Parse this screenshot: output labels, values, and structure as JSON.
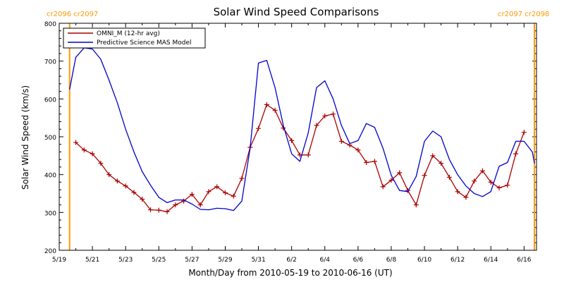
{
  "chart_data": {
    "type": "line",
    "title": "Solar Wind Speed Comparisons",
    "xlabel": "Month/Day from 2010-05-19 to 2010-06-16 (UT)",
    "ylabel": "Solar Wind Speed (km/s)",
    "xlim": [
      "2010-05-19",
      "2010-06-16T18:00"
    ],
    "ylim": [
      200,
      800
    ],
    "x_tick_labels": [
      "5/19",
      "5/21",
      "5/23",
      "5/25",
      "5/27",
      "5/29",
      "5/31",
      "6/2",
      "6/4",
      "6/6",
      "6/8",
      "6/10",
      "6/12",
      "6/14",
      "6/16"
    ],
    "y_tick_labels": [
      "200",
      "300",
      "400",
      "500",
      "600",
      "700",
      "800"
    ],
    "legend_placement": "top-left",
    "carrington_markers": [
      {
        "label": "cr2096 cr2097",
        "x": "2010-05-19T15:00",
        "color": "#ff9900"
      },
      {
        "label": "cr2097 cr2098",
        "x": "2010-06-16T15:00",
        "color": "#ff9900"
      }
    ],
    "series": [
      {
        "name": "OMNI_M (12-hr avg)",
        "color": "#aa0000",
        "marker": "plus",
        "points": [
          [
            "2010-05-20T00:00",
            485
          ],
          [
            "2010-05-20T12:00",
            465
          ],
          [
            "2010-05-21T00:00",
            455
          ],
          [
            "2010-05-21T12:00",
            430
          ],
          [
            "2010-05-22T00:00",
            400
          ],
          [
            "2010-05-22T12:00",
            383
          ],
          [
            "2010-05-23T00:00",
            370
          ],
          [
            "2010-05-23T12:00",
            353
          ],
          [
            "2010-05-24T00:00",
            335
          ],
          [
            "2010-05-24T12:00",
            307
          ],
          [
            "2010-05-25T00:00",
            306
          ],
          [
            "2010-05-25T12:00",
            302
          ],
          [
            "2010-05-26T00:00",
            320
          ],
          [
            "2010-05-26T12:00",
            330
          ],
          [
            "2010-05-27T00:00",
            348
          ],
          [
            "2010-05-27T12:00",
            320
          ],
          [
            "2010-05-28T00:00",
            355
          ],
          [
            "2010-05-28T12:00",
            368
          ],
          [
            "2010-05-29T00:00",
            352
          ],
          [
            "2010-05-29T12:00",
            343
          ],
          [
            "2010-05-30T00:00",
            390
          ],
          [
            "2010-05-30T12:00",
            472
          ],
          [
            "2010-05-31T00:00",
            522
          ],
          [
            "2010-05-31T12:00",
            585
          ],
          [
            "2010-06-01T00:00",
            570
          ],
          [
            "2010-06-01T12:00",
            523
          ],
          [
            "2010-06-02T00:00",
            490
          ],
          [
            "2010-06-02T12:00",
            452
          ],
          [
            "2010-06-03T00:00",
            452
          ],
          [
            "2010-06-03T12:00",
            530
          ],
          [
            "2010-06-04T00:00",
            555
          ],
          [
            "2010-06-04T12:00",
            560
          ],
          [
            "2010-06-05T00:00",
            488
          ],
          [
            "2010-06-05T12:00",
            478
          ],
          [
            "2010-06-06T00:00",
            465
          ],
          [
            "2010-06-06T12:00",
            432
          ],
          [
            "2010-06-07T00:00",
            435
          ],
          [
            "2010-06-07T12:00",
            368
          ],
          [
            "2010-06-08T00:00",
            385
          ],
          [
            "2010-06-08T12:00",
            405
          ],
          [
            "2010-06-09T00:00",
            358
          ],
          [
            "2010-06-09T12:00",
            320
          ],
          [
            "2010-06-10T00:00",
            398
          ],
          [
            "2010-06-10T12:00",
            450
          ],
          [
            "2010-06-11T00:00",
            430
          ],
          [
            "2010-06-11T12:00",
            393
          ],
          [
            "2010-06-12T00:00",
            355
          ],
          [
            "2010-06-12T12:00",
            340
          ],
          [
            "2010-06-13T00:00",
            383
          ],
          [
            "2010-06-13T12:00",
            410
          ],
          [
            "2010-06-14T00:00",
            380
          ],
          [
            "2010-06-14T12:00",
            365
          ],
          [
            "2010-06-15T00:00",
            372
          ],
          [
            "2010-06-15T12:00",
            455
          ],
          [
            "2010-06-16T00:00",
            512
          ]
        ]
      },
      {
        "name": "Predictive Science MAS Model",
        "color": "#0000cc",
        "points": [
          [
            "2010-05-19T15:00",
            625
          ],
          [
            "2010-05-20T00:00",
            710
          ],
          [
            "2010-05-20T12:00",
            735
          ],
          [
            "2010-05-21T00:00",
            732
          ],
          [
            "2010-05-21T12:00",
            705
          ],
          [
            "2010-05-22T00:00",
            650
          ],
          [
            "2010-05-22T12:00",
            590
          ],
          [
            "2010-05-23T00:00",
            520
          ],
          [
            "2010-05-23T12:00",
            460
          ],
          [
            "2010-05-24T00:00",
            408
          ],
          [
            "2010-05-24T12:00",
            372
          ],
          [
            "2010-05-25T00:00",
            340
          ],
          [
            "2010-05-25T12:00",
            326
          ],
          [
            "2010-05-26T00:00",
            333
          ],
          [
            "2010-05-26T12:00",
            333
          ],
          [
            "2010-05-27T00:00",
            322
          ],
          [
            "2010-05-27T12:00",
            308
          ],
          [
            "2010-05-28T00:00",
            307
          ],
          [
            "2010-05-28T12:00",
            311
          ],
          [
            "2010-05-29T00:00",
            310
          ],
          [
            "2010-05-29T12:00",
            305
          ],
          [
            "2010-05-30T00:00",
            330
          ],
          [
            "2010-05-30T12:00",
            470
          ],
          [
            "2010-05-31T00:00",
            695
          ],
          [
            "2010-05-31T12:00",
            702
          ],
          [
            "2010-06-01T00:00",
            630
          ],
          [
            "2010-06-01T12:00",
            530
          ],
          [
            "2010-06-02T00:00",
            455
          ],
          [
            "2010-06-02T12:00",
            435
          ],
          [
            "2010-06-03T00:00",
            510
          ],
          [
            "2010-06-03T12:00",
            630
          ],
          [
            "2010-06-04T00:00",
            648
          ],
          [
            "2010-06-04T12:00",
            600
          ],
          [
            "2010-06-05T00:00",
            530
          ],
          [
            "2010-06-05T12:00",
            482
          ],
          [
            "2010-06-06T00:00",
            490
          ],
          [
            "2010-06-06T12:00",
            535
          ],
          [
            "2010-06-07T00:00",
            525
          ],
          [
            "2010-06-07T12:00",
            470
          ],
          [
            "2010-06-08T00:00",
            398
          ],
          [
            "2010-06-08T12:00",
            358
          ],
          [
            "2010-06-09T00:00",
            355
          ],
          [
            "2010-06-09T12:00",
            395
          ],
          [
            "2010-06-10T00:00",
            488
          ],
          [
            "2010-06-10T12:00",
            515
          ],
          [
            "2010-06-11T00:00",
            500
          ],
          [
            "2010-06-11T12:00",
            440
          ],
          [
            "2010-06-12T00:00",
            400
          ],
          [
            "2010-06-12T12:00",
            370
          ],
          [
            "2010-06-13T00:00",
            350
          ],
          [
            "2010-06-13T12:00",
            342
          ],
          [
            "2010-06-14T00:00",
            355
          ],
          [
            "2010-06-14T12:00",
            422
          ],
          [
            "2010-06-15T00:00",
            432
          ],
          [
            "2010-06-15T12:00",
            488
          ],
          [
            "2010-06-16T00:00",
            488
          ],
          [
            "2010-06-16T12:00",
            460
          ],
          [
            "2010-06-16T15:00",
            430
          ]
        ]
      }
    ]
  }
}
